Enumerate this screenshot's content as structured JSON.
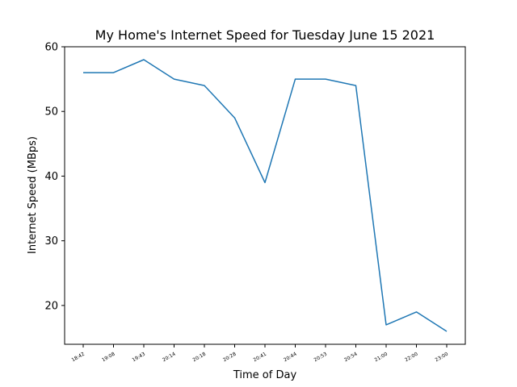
{
  "chart_data": {
    "type": "line",
    "title": "My Home's Internet Speed for Tuesday June 15 2021",
    "xlabel": "Time of Day",
    "ylabel": "Internet Speed (MBps)",
    "categories": [
      "18:42",
      "19:08",
      "19:43",
      "20:14",
      "20:18",
      "20:28",
      "20:41",
      "20:44",
      "20:53",
      "20:54",
      "21:00",
      "22:00",
      "23:00"
    ],
    "series": [
      {
        "values": [
          56,
          56,
          58,
          55,
          54,
          49,
          39,
          55,
          55,
          54,
          17,
          19,
          16
        ]
      }
    ],
    "ylim": [
      14,
      60
    ],
    "yticks": [
      20,
      30,
      40,
      50,
      60
    ],
    "grid": false,
    "line_color": "#1f77b4"
  }
}
